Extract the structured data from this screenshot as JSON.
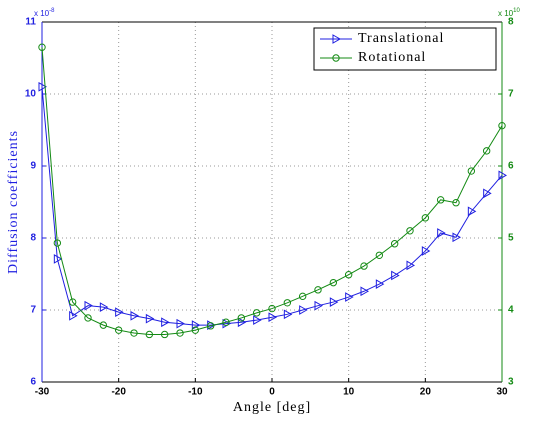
{
  "chart_data": {
    "type": "line",
    "x_label": "Angle [deg]",
    "y_label": "Diffusion coefficients",
    "y_multiplier": {
      "base": "x 10",
      "exponent": "-8"
    },
    "y2_multiplier": {
      "base": "x 10",
      "exponent": "10"
    },
    "x": [
      -30,
      -28,
      -26,
      -24,
      -22,
      -20,
      -18,
      -16,
      -14,
      -12,
      -10,
      -8,
      -6,
      -4,
      -2,
      0,
      2,
      4,
      6,
      8,
      10,
      12,
      14,
      16,
      18,
      20,
      22,
      24,
      26,
      28,
      30
    ],
    "series": [
      {
        "name": "Translational",
        "color": "#1f1fe0",
        "marker": "triangle-right",
        "axis": "y",
        "values": [
          10.1,
          7.71,
          6.92,
          7.06,
          7.04,
          6.97,
          6.92,
          6.88,
          6.83,
          6.81,
          6.79,
          6.79,
          6.81,
          6.83,
          6.86,
          6.9,
          6.94,
          7.0,
          7.06,
          7.11,
          7.18,
          7.26,
          7.36,
          7.48,
          7.62,
          7.82,
          8.07,
          8.01,
          8.37,
          8.62,
          8.87
        ]
      },
      {
        "name": "Rotational",
        "color": "#138a13",
        "marker": "circle",
        "axis": "y2",
        "values": [
          7.65,
          4.93,
          4.11,
          3.89,
          3.79,
          3.72,
          3.68,
          3.66,
          3.66,
          3.68,
          3.72,
          3.78,
          3.83,
          3.89,
          3.96,
          4.02,
          4.1,
          4.19,
          4.28,
          4.38,
          4.49,
          4.61,
          4.76,
          4.92,
          5.1,
          5.28,
          5.53,
          5.49,
          5.93,
          6.21,
          6.56
        ]
      }
    ],
    "xlim": [
      -30,
      30
    ],
    "xticks": [
      -30,
      -20,
      -10,
      0,
      10,
      20,
      30
    ],
    "ylim": [
      6,
      11
    ],
    "yticks": [
      6,
      7,
      8,
      9,
      10,
      11
    ],
    "y2lim": [
      3,
      8
    ],
    "y2ticks": [
      3,
      4,
      5,
      6,
      7,
      8
    ],
    "grid": true,
    "legend": "upper right",
    "y_color": "#1f1fe0",
    "y2_color": "#138a13"
  }
}
